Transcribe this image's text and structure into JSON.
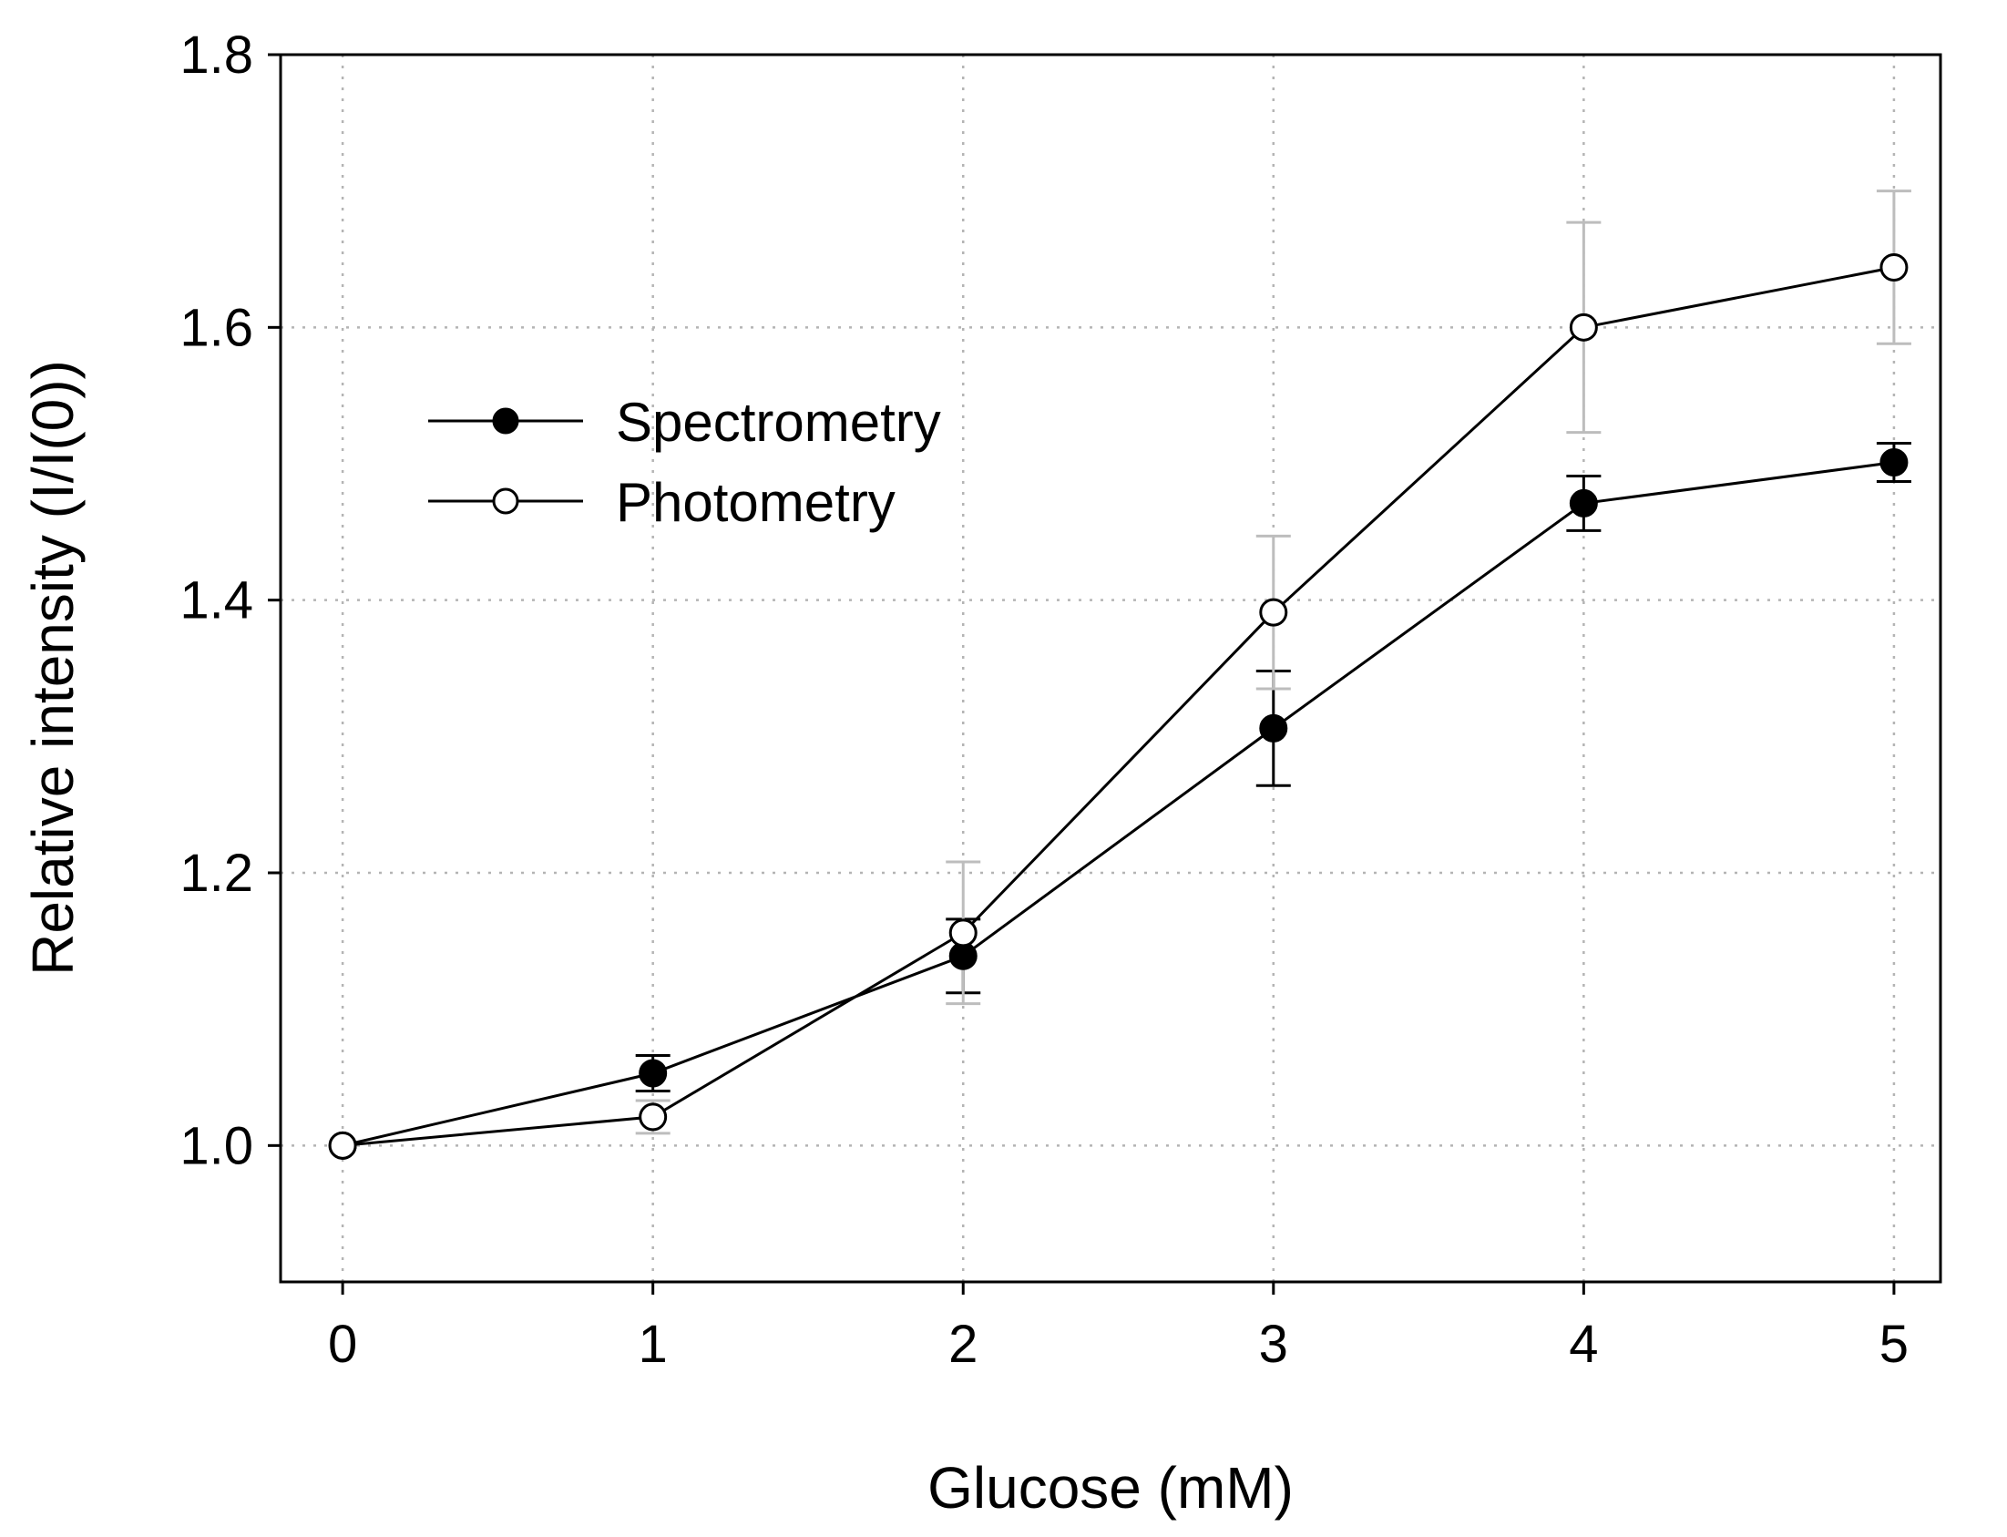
{
  "colors": {
    "axis": "#000000",
    "grid": "#b4b4b4",
    "line": "#000000",
    "errorbar_spectrometry": "#000000",
    "errorbar_photometry": "#bdbdbd",
    "marker_open_fill": "#ffffff",
    "marker_filled": "#000000"
  },
  "chart_data": {
    "type": "line",
    "title": "",
    "xlabel": "Glucose (mM)",
    "ylabel": "Relative intensity (I/I(0))",
    "xlim": [
      -0.2,
      5.15
    ],
    "ylim": [
      0.9,
      1.8
    ],
    "x": [
      0,
      1,
      2,
      3,
      4,
      5
    ],
    "xticks": [
      0,
      1,
      2,
      3,
      4,
      5
    ],
    "xtick_labels": [
      "0",
      "1",
      "2",
      "3",
      "4",
      "5"
    ],
    "yticks": [
      1.0,
      1.2,
      1.4,
      1.6,
      1.8
    ],
    "ytick_labels": [
      "1.0",
      "1.2",
      "1.4",
      "1.6",
      "1.8"
    ],
    "grid": true,
    "legend_position": "upper-left",
    "series": [
      {
        "name": "Spectrometry",
        "marker": "filled-circle",
        "values": [
          1.0,
          1.053,
          1.139,
          1.306,
          1.471,
          1.501
        ],
        "errors": [
          0.0,
          0.013,
          0.027,
          0.042,
          0.02,
          0.014
        ]
      },
      {
        "name": "Photometry",
        "marker": "open-circle",
        "values": [
          1.0,
          1.021,
          1.156,
          1.391,
          1.6,
          1.644
        ],
        "errors": [
          0.0,
          0.012,
          0.052,
          0.056,
          0.077,
          0.056
        ]
      }
    ]
  }
}
